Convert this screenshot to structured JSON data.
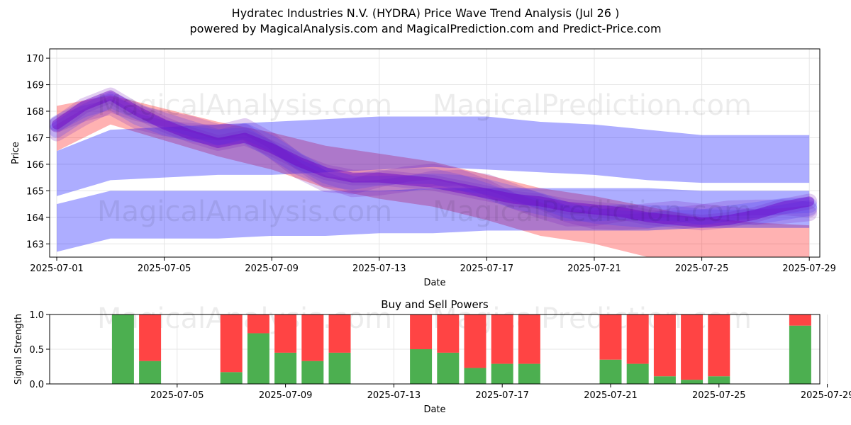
{
  "header": {
    "title": "Hydratec Industries N.V. (HYDRA) Price Wave Trend Analysis (Jul 26 )",
    "subtitle": "powered by MagicalAnalysis.com and MagicalPrediction.com and Predict-Price.com"
  },
  "watermarks": [
    "MagicalAnalysis.com",
    "MagicalPrediction.com"
  ],
  "colors": {
    "red_band": "#ff0000",
    "blue_band": "#0000ff",
    "buy": "#4caf50",
    "sell": "#ff4444"
  },
  "chart_data": [
    {
      "type": "area",
      "title": "",
      "xlabel": "Date",
      "ylabel": "Price",
      "grid": true,
      "x_ticks": [
        "2025-07-01",
        "2025-07-05",
        "2025-07-09",
        "2025-07-13",
        "2025-07-17",
        "2025-07-21",
        "2025-07-25",
        "2025-07-29"
      ],
      "xlim": [
        0,
        28.5
      ],
      "ylim": [
        162.5,
        170.35
      ],
      "y_ticks": [
        163,
        164,
        165,
        166,
        167,
        168,
        169,
        170
      ],
      "series": [
        {
          "name": "red band wide",
          "color": "red",
          "x": [
            0,
            2,
            4,
            6,
            8,
            10,
            12,
            14,
            16,
            18,
            20,
            22,
            24,
            26,
            28
          ],
          "upper": [
            168.2,
            168.6,
            168.1,
            167.6,
            167.2,
            166.7,
            166.4,
            166.1,
            165.6,
            165.1,
            164.8,
            164.4,
            164.0,
            163.8,
            163.7
          ],
          "lower": [
            166.5,
            167.5,
            166.9,
            166.3,
            165.8,
            165.1,
            164.7,
            164.4,
            163.9,
            163.3,
            163.0,
            162.5,
            162.2,
            162.0,
            162.0
          ]
        },
        {
          "name": "blue band upper",
          "color": "blue",
          "x": [
            0,
            2,
            4,
            6,
            8,
            10,
            12,
            14,
            16,
            18,
            20,
            22,
            24,
            26,
            28
          ],
          "upper": [
            166.5,
            167.3,
            167.4,
            167.5,
            167.6,
            167.7,
            167.8,
            167.8,
            167.8,
            167.6,
            167.5,
            167.3,
            167.1,
            167.1,
            167.1
          ],
          "lower": [
            164.8,
            165.4,
            165.5,
            165.6,
            165.6,
            165.7,
            165.8,
            165.9,
            165.8,
            165.7,
            165.6,
            165.4,
            165.3,
            165.3,
            165.3
          ]
        },
        {
          "name": "blue band lower",
          "color": "blue",
          "x": [
            0,
            2,
            4,
            6,
            8,
            10,
            12,
            14,
            16,
            18,
            20,
            22,
            24,
            26,
            28
          ],
          "upper": [
            164.5,
            165.0,
            165.0,
            165.0,
            165.0,
            165.0,
            165.0,
            165.1,
            165.1,
            165.1,
            165.1,
            165.1,
            165.0,
            165.0,
            165.0
          ],
          "lower": [
            162.7,
            163.2,
            163.2,
            163.2,
            163.3,
            163.3,
            163.4,
            163.4,
            163.5,
            163.5,
            163.5,
            163.5,
            163.6,
            163.6,
            163.6
          ]
        },
        {
          "name": "trend center",
          "color": "purple",
          "x": [
            0,
            1,
            2,
            3,
            4,
            5,
            6,
            7,
            8,
            9,
            10,
            11,
            12,
            13,
            14,
            15,
            16,
            17,
            18,
            19,
            20,
            21,
            22,
            23,
            24,
            25,
            26,
            27,
            28
          ],
          "values": [
            167.5,
            168.2,
            168.6,
            168.0,
            167.5,
            167.1,
            166.8,
            167.0,
            166.6,
            166.1,
            165.7,
            165.5,
            165.5,
            165.4,
            165.3,
            165.1,
            164.9,
            164.7,
            164.6,
            164.4,
            164.3,
            164.2,
            164.0,
            163.9,
            163.8,
            163.9,
            164.1,
            164.4,
            164.6
          ]
        }
      ]
    },
    {
      "type": "bar",
      "title": "Buy and Sell Powers",
      "xlabel": "Date",
      "ylabel": "Signal Strength",
      "ylim": [
        0,
        1
      ],
      "y_ticks": [
        "0.0",
        "0.5",
        "1.0"
      ],
      "x_ticks": [
        "2025-07-05",
        "2025-07-09",
        "2025-07-13",
        "2025-07-17",
        "2025-07-21",
        "2025-07-25",
        "2025-07-29"
      ],
      "x": [
        1,
        2,
        5,
        6,
        7,
        8,
        9,
        12,
        13,
        14,
        15,
        16,
        19,
        20,
        21,
        22,
        23,
        26
      ],
      "buy": [
        1.0,
        0.33,
        0.17,
        0.73,
        0.45,
        0.33,
        0.45,
        0.5,
        0.45,
        0.23,
        0.29,
        0.29,
        0.35,
        0.29,
        0.11,
        0.06,
        0.11,
        0.84
      ],
      "sell": [
        0.0,
        0.67,
        0.83,
        0.27,
        0.55,
        0.67,
        0.55,
        0.5,
        0.55,
        0.77,
        0.71,
        0.71,
        0.65,
        0.71,
        0.89,
        0.94,
        0.89,
        0.16
      ]
    }
  ]
}
